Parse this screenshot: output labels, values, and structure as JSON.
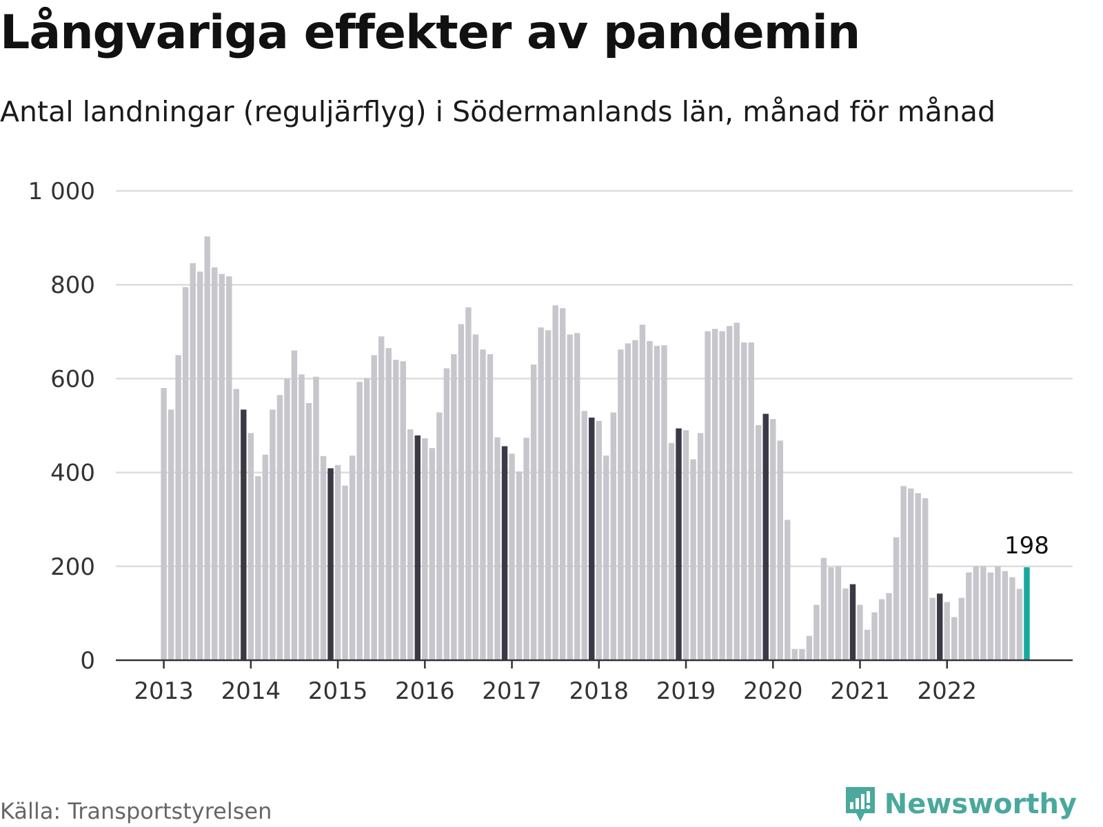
{
  "header": {
    "title": "Långvariga effekter av pandemin",
    "subtitle": "Antal landningar (reguljärflyg) i Södermanlands län, månad för månad"
  },
  "footer": {
    "source": "Källa: Transportstyrelsen",
    "brand": "Newsworthy",
    "brand_icon": "newsworthy-logo-icon"
  },
  "colors": {
    "bar_default": "#c6c6cc",
    "bar_december": "#3a3a46",
    "bar_latest": "#16a99c",
    "grid": "#dddddd",
    "axis": "#333333",
    "brand": "#4aa89c"
  },
  "chart_data": {
    "type": "bar",
    "title": "Långvariga effekter av pandemin",
    "subtitle": "Antal landningar (reguljärflyg) i Södermanlands län, månad för månad",
    "xlabel": "",
    "ylabel": "",
    "ylim": [
      0,
      1000
    ],
    "yticks": [
      0,
      200,
      400,
      600,
      800,
      1000
    ],
    "ytick_labels": [
      "0",
      "200",
      "400",
      "600",
      "800",
      "1 000"
    ],
    "x_tick_labels": [
      "2013",
      "2014",
      "2015",
      "2016",
      "2017",
      "2018",
      "2019",
      "2020",
      "2021",
      "2022"
    ],
    "grid": true,
    "highlight": "December bars dark; latest month teal",
    "last_value_label": "198",
    "series": [
      {
        "years": [
          {
            "year": 2013,
            "values": [
              580,
              534,
              650,
              795,
              846,
              828,
              903,
              837,
              823,
              818,
              578,
              534
            ]
          },
          {
            "year": 2014,
            "values": [
              484,
              392,
              438,
              534,
              565,
              600,
              660,
              609,
              548,
              604,
              435,
              409
            ]
          },
          {
            "year": 2015,
            "values": [
              416,
              372,
              436,
              593,
              601,
              650,
              690,
              665,
              640,
              637,
              492,
              479
            ]
          },
          {
            "year": 2016,
            "values": [
              473,
              452,
              528,
              622,
              652,
              716,
              752,
              694,
              662,
              652,
              475,
              456
            ]
          },
          {
            "year": 2017,
            "values": [
              440,
              402,
              474,
              630,
              709,
              703,
              756,
              750,
              694,
              697,
              531,
              517
            ]
          },
          {
            "year": 2018,
            "values": [
              510,
              436,
              528,
              662,
              675,
              682,
              715,
              680,
              670,
              671,
              463,
              494
            ]
          },
          {
            "year": 2019,
            "values": [
              490,
              428,
              484,
              701,
              706,
              701,
              712,
              719,
              677,
              677,
              501,
              525
            ]
          },
          {
            "year": 2020,
            "values": [
              514,
              468,
              299,
              24,
              24,
              52,
              118,
              218,
              198,
              200,
              153,
              162
            ]
          },
          {
            "year": 2021,
            "values": [
              118,
              65,
              102,
              130,
              143,
              262,
              371,
              366,
              356,
              345,
              133,
              142
            ]
          },
          {
            "year": 2022,
            "values": [
              124,
              92,
              133,
              187,
              200,
              200,
              187,
              200,
              190,
              177,
              152,
              198
            ]
          }
        ]
      }
    ]
  }
}
